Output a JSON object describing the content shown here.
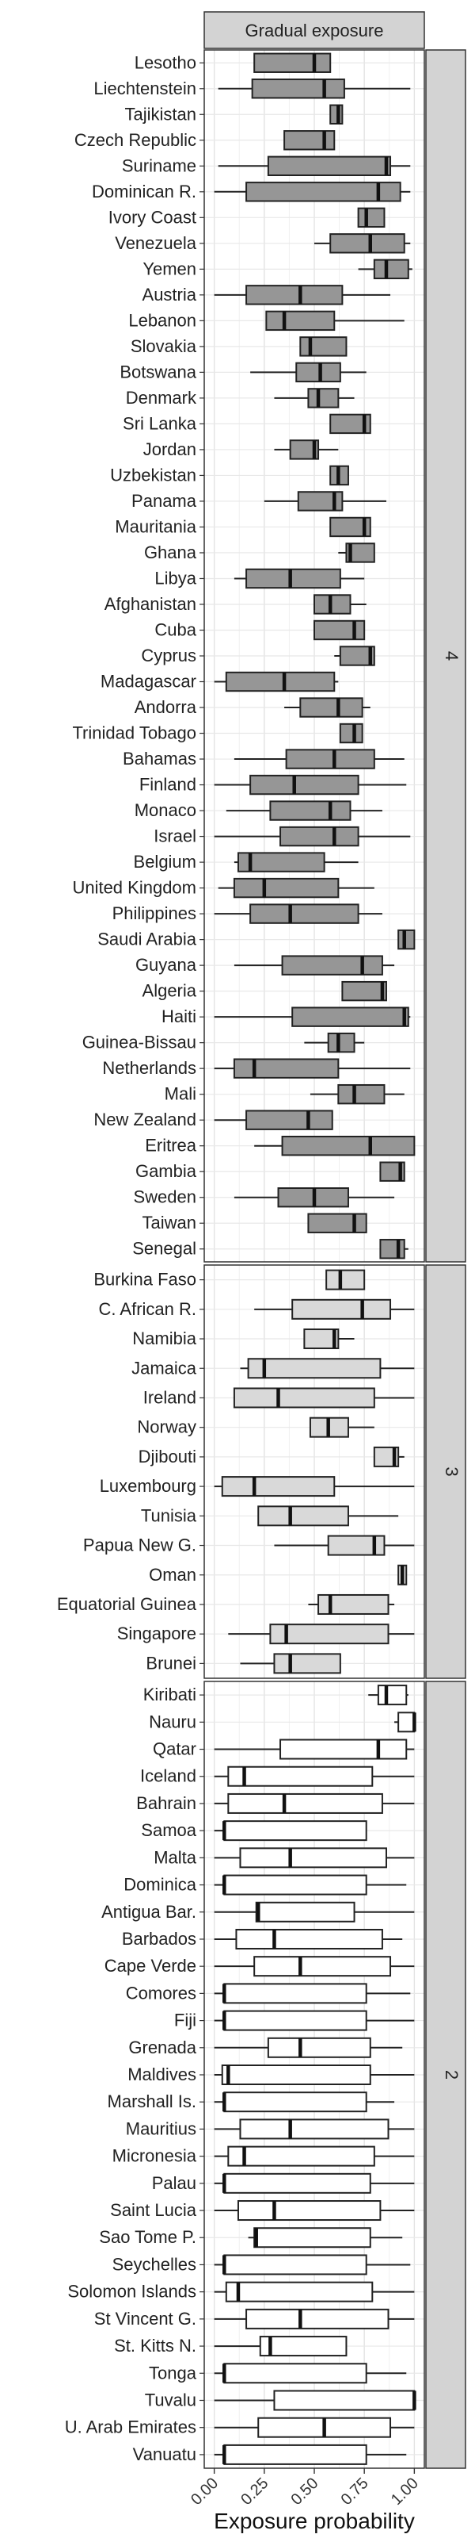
{
  "chart_data": {
    "type": "boxplot",
    "title": "",
    "column_strip": "Gradual exposure",
    "xlabel": "Exposure probability",
    "xlim": [
      -0.05,
      1.05
    ],
    "xticks": [
      0.0,
      0.25,
      0.5,
      0.75,
      1.0
    ],
    "xtick_labels": [
      "0.00",
      "0.25",
      "0.50",
      "0.75",
      "1.00"
    ],
    "grid": true,
    "panels": [
      {
        "label": "4",
        "fill": "#969696",
        "rows": [
          {
            "country": "Lesotho",
            "whisker_low": 0.2,
            "q1": 0.2,
            "median": 0.5,
            "q3": 0.58,
            "whisker_high": 0.58
          },
          {
            "country": "Liechtenstein",
            "whisker_low": 0.02,
            "q1": 0.19,
            "median": 0.55,
            "q3": 0.65,
            "whisker_high": 0.98
          },
          {
            "country": "Tajikistan",
            "whisker_low": 0.58,
            "q1": 0.58,
            "median": 0.62,
            "q3": 0.64,
            "whisker_high": 0.64
          },
          {
            "country": "Czech Republic",
            "whisker_low": 0.35,
            "q1": 0.35,
            "median": 0.55,
            "q3": 0.6,
            "whisker_high": 0.6
          },
          {
            "country": "Suriname",
            "whisker_low": 0.02,
            "q1": 0.27,
            "median": 0.86,
            "q3": 0.88,
            "whisker_high": 0.98
          },
          {
            "country": "Dominican R.",
            "whisker_low": 0.0,
            "q1": 0.16,
            "median": 0.82,
            "q3": 0.93,
            "whisker_high": 0.98
          },
          {
            "country": "Ivory Coast",
            "whisker_low": 0.72,
            "q1": 0.72,
            "median": 0.76,
            "q3": 0.85,
            "whisker_high": 0.85
          },
          {
            "country": "Venezuela",
            "whisker_low": 0.5,
            "q1": 0.58,
            "median": 0.78,
            "q3": 0.95,
            "whisker_high": 0.98
          },
          {
            "country": "Yemen",
            "whisker_low": 0.72,
            "q1": 0.8,
            "median": 0.86,
            "q3": 0.97,
            "whisker_high": 0.99
          },
          {
            "country": "Austria",
            "whisker_low": 0.0,
            "q1": 0.16,
            "median": 0.43,
            "q3": 0.64,
            "whisker_high": 0.88
          },
          {
            "country": "Lebanon",
            "whisker_low": 0.26,
            "q1": 0.26,
            "median": 0.35,
            "q3": 0.6,
            "whisker_high": 0.95
          },
          {
            "country": "Slovakia",
            "whisker_low": 0.43,
            "q1": 0.43,
            "median": 0.48,
            "q3": 0.66,
            "whisker_high": 0.66
          },
          {
            "country": "Botswana",
            "whisker_low": 0.18,
            "q1": 0.41,
            "median": 0.53,
            "q3": 0.63,
            "whisker_high": 0.76
          },
          {
            "country": "Denmark",
            "whisker_low": 0.3,
            "q1": 0.47,
            "median": 0.52,
            "q3": 0.62,
            "whisker_high": 0.7
          },
          {
            "country": "Sri Lanka",
            "whisker_low": 0.58,
            "q1": 0.58,
            "median": 0.75,
            "q3": 0.78,
            "whisker_high": 0.78
          },
          {
            "country": "Jordan",
            "whisker_low": 0.3,
            "q1": 0.38,
            "median": 0.5,
            "q3": 0.52,
            "whisker_high": 0.62
          },
          {
            "country": "Uzbekistan",
            "whisker_low": 0.58,
            "q1": 0.58,
            "median": 0.62,
            "q3": 0.67,
            "whisker_high": 0.67
          },
          {
            "country": "Panama",
            "whisker_low": 0.25,
            "q1": 0.42,
            "median": 0.6,
            "q3": 0.64,
            "whisker_high": 0.86
          },
          {
            "country": "Mauritania",
            "whisker_low": 0.58,
            "q1": 0.58,
            "median": 0.75,
            "q3": 0.78,
            "whisker_high": 0.78
          },
          {
            "country": "Ghana",
            "whisker_low": 0.62,
            "q1": 0.66,
            "median": 0.68,
            "q3": 0.8,
            "whisker_high": 0.8
          },
          {
            "country": "Libya",
            "whisker_low": 0.1,
            "q1": 0.16,
            "median": 0.38,
            "q3": 0.63,
            "whisker_high": 0.75
          },
          {
            "country": "Afghanistan",
            "whisker_low": 0.5,
            "q1": 0.5,
            "median": 0.58,
            "q3": 0.68,
            "whisker_high": 0.76
          },
          {
            "country": "Cuba",
            "whisker_low": 0.5,
            "q1": 0.5,
            "median": 0.7,
            "q3": 0.75,
            "whisker_high": 0.75
          },
          {
            "country": "Cyprus",
            "whisker_low": 0.6,
            "q1": 0.63,
            "median": 0.78,
            "q3": 0.8,
            "whisker_high": 0.8
          },
          {
            "country": "Madagascar",
            "whisker_low": 0.0,
            "q1": 0.06,
            "median": 0.35,
            "q3": 0.6,
            "whisker_high": 0.62
          },
          {
            "country": "Andorra",
            "whisker_low": 0.35,
            "q1": 0.43,
            "median": 0.62,
            "q3": 0.74,
            "whisker_high": 0.78
          },
          {
            "country": "Trinidad Tobago",
            "whisker_low": 0.63,
            "q1": 0.63,
            "median": 0.7,
            "q3": 0.74,
            "whisker_high": 0.74
          },
          {
            "country": "Bahamas",
            "whisker_low": 0.1,
            "q1": 0.36,
            "median": 0.6,
            "q3": 0.8,
            "whisker_high": 0.95
          },
          {
            "country": "Finland",
            "whisker_low": 0.0,
            "q1": 0.18,
            "median": 0.4,
            "q3": 0.72,
            "whisker_high": 0.96
          },
          {
            "country": "Monaco",
            "whisker_low": 0.06,
            "q1": 0.28,
            "median": 0.58,
            "q3": 0.68,
            "whisker_high": 0.84
          },
          {
            "country": "Israel",
            "whisker_low": 0.0,
            "q1": 0.33,
            "median": 0.6,
            "q3": 0.72,
            "whisker_high": 0.98
          },
          {
            "country": "Belgium",
            "whisker_low": 0.1,
            "q1": 0.12,
            "median": 0.18,
            "q3": 0.55,
            "whisker_high": 0.72
          },
          {
            "country": "United Kingdom",
            "whisker_low": 0.02,
            "q1": 0.1,
            "median": 0.25,
            "q3": 0.62,
            "whisker_high": 0.8
          },
          {
            "country": "Philippines",
            "whisker_low": 0.0,
            "q1": 0.18,
            "median": 0.38,
            "q3": 0.72,
            "whisker_high": 0.84
          },
          {
            "country": "Saudi Arabia",
            "whisker_low": 0.92,
            "q1": 0.92,
            "median": 0.95,
            "q3": 1.0,
            "whisker_high": 1.0
          },
          {
            "country": "Guyana",
            "whisker_low": 0.1,
            "q1": 0.34,
            "median": 0.74,
            "q3": 0.84,
            "whisker_high": 0.9
          },
          {
            "country": "Algeria",
            "whisker_low": 0.64,
            "q1": 0.64,
            "median": 0.84,
            "q3": 0.86,
            "whisker_high": 0.86
          },
          {
            "country": "Haiti",
            "whisker_low": 0.0,
            "q1": 0.39,
            "median": 0.95,
            "q3": 0.97,
            "whisker_high": 0.98
          },
          {
            "country": "Guinea-Bissau",
            "whisker_low": 0.45,
            "q1": 0.57,
            "median": 0.62,
            "q3": 0.7,
            "whisker_high": 0.75
          },
          {
            "country": "Netherlands",
            "whisker_low": 0.0,
            "q1": 0.1,
            "median": 0.2,
            "q3": 0.62,
            "whisker_high": 0.98
          },
          {
            "country": "Mali",
            "whisker_low": 0.48,
            "q1": 0.62,
            "median": 0.7,
            "q3": 0.85,
            "whisker_high": 0.95
          },
          {
            "country": "New Zealand",
            "whisker_low": 0.0,
            "q1": 0.16,
            "median": 0.47,
            "q3": 0.59,
            "whisker_high": 0.59
          },
          {
            "country": "Eritrea",
            "whisker_low": 0.2,
            "q1": 0.34,
            "median": 0.78,
            "q3": 1.0,
            "whisker_high": 1.0
          },
          {
            "country": "Gambia",
            "whisker_low": 0.83,
            "q1": 0.83,
            "median": 0.93,
            "q3": 0.95,
            "whisker_high": 0.95
          },
          {
            "country": "Sweden",
            "whisker_low": 0.1,
            "q1": 0.32,
            "median": 0.5,
            "q3": 0.67,
            "whisker_high": 0.9
          },
          {
            "country": "Taiwan",
            "whisker_low": 0.47,
            "q1": 0.47,
            "median": 0.7,
            "q3": 0.76,
            "whisker_high": 0.76
          },
          {
            "country": "Senegal",
            "whisker_low": 0.83,
            "q1": 0.83,
            "median": 0.92,
            "q3": 0.95,
            "whisker_high": 0.97
          }
        ]
      },
      {
        "label": "3",
        "fill": "#d9d9d9",
        "rows": [
          {
            "country": "Burkina Faso",
            "whisker_low": 0.56,
            "q1": 0.56,
            "median": 0.63,
            "q3": 0.75,
            "whisker_high": 0.75
          },
          {
            "country": "C. African R.",
            "whisker_low": 0.2,
            "q1": 0.39,
            "median": 0.74,
            "q3": 0.88,
            "whisker_high": 1.0
          },
          {
            "country": "Namibia",
            "whisker_low": 0.45,
            "q1": 0.45,
            "median": 0.6,
            "q3": 0.62,
            "whisker_high": 0.7
          },
          {
            "country": "Jamaica",
            "whisker_low": 0.13,
            "q1": 0.17,
            "median": 0.25,
            "q3": 0.83,
            "whisker_high": 1.0
          },
          {
            "country": "Ireland",
            "whisker_low": 0.1,
            "q1": 0.1,
            "median": 0.32,
            "q3": 0.8,
            "whisker_high": 1.0
          },
          {
            "country": "Norway",
            "whisker_low": 0.48,
            "q1": 0.48,
            "median": 0.57,
            "q3": 0.67,
            "whisker_high": 0.8
          },
          {
            "country": "Djibouti",
            "whisker_low": 0.8,
            "q1": 0.8,
            "median": 0.9,
            "q3": 0.92,
            "whisker_high": 0.95
          },
          {
            "country": "Luxembourg",
            "whisker_low": 0.0,
            "q1": 0.04,
            "median": 0.2,
            "q3": 0.6,
            "whisker_high": 1.0
          },
          {
            "country": "Tunisia",
            "whisker_low": 0.22,
            "q1": 0.22,
            "median": 0.38,
            "q3": 0.67,
            "whisker_high": 0.92
          },
          {
            "country": "Papua New G.",
            "whisker_low": 0.3,
            "q1": 0.57,
            "median": 0.8,
            "q3": 0.85,
            "whisker_high": 1.0
          },
          {
            "country": "Oman",
            "whisker_low": 0.92,
            "q1": 0.92,
            "median": 0.94,
            "q3": 0.96,
            "whisker_high": 0.96
          },
          {
            "country": "Equatorial Guinea",
            "whisker_low": 0.47,
            "q1": 0.52,
            "median": 0.58,
            "q3": 0.87,
            "whisker_high": 0.9
          },
          {
            "country": "Singapore",
            "whisker_low": 0.07,
            "q1": 0.28,
            "median": 0.36,
            "q3": 0.87,
            "whisker_high": 1.0
          },
          {
            "country": "Brunei",
            "whisker_low": 0.13,
            "q1": 0.3,
            "median": 0.38,
            "q3": 0.63,
            "whisker_high": 0.63
          }
        ]
      },
      {
        "label": "2",
        "fill": "#ffffff",
        "rows": [
          {
            "country": "Kiribati",
            "whisker_low": 0.77,
            "q1": 0.82,
            "median": 0.86,
            "q3": 0.96,
            "whisker_high": 0.97
          },
          {
            "country": "Nauru",
            "whisker_low": 0.9,
            "q1": 0.92,
            "median": 1.0,
            "q3": 1.0,
            "whisker_high": 1.0
          },
          {
            "country": "Qatar",
            "whisker_low": 0.0,
            "q1": 0.33,
            "median": 0.82,
            "q3": 0.96,
            "whisker_high": 1.0
          },
          {
            "country": "Iceland",
            "whisker_low": 0.0,
            "q1": 0.07,
            "median": 0.15,
            "q3": 0.79,
            "whisker_high": 1.0
          },
          {
            "country": "Bahrain",
            "whisker_low": 0.0,
            "q1": 0.07,
            "median": 0.35,
            "q3": 0.84,
            "whisker_high": 1.0
          },
          {
            "country": "Samoa",
            "whisker_low": 0.0,
            "q1": 0.05,
            "median": 0.05,
            "q3": 0.76,
            "whisker_high": 0.76
          },
          {
            "country": "Malta",
            "whisker_low": 0.0,
            "q1": 0.13,
            "median": 0.38,
            "q3": 0.86,
            "whisker_high": 1.0
          },
          {
            "country": "Dominica",
            "whisker_low": 0.0,
            "q1": 0.05,
            "median": 0.05,
            "q3": 0.76,
            "whisker_high": 0.96
          },
          {
            "country": "Antigua Bar.",
            "whisker_low": 0.0,
            "q1": 0.21,
            "median": 0.22,
            "q3": 0.7,
            "whisker_high": 1.0
          },
          {
            "country": "Barbados",
            "whisker_low": 0.0,
            "q1": 0.11,
            "median": 0.3,
            "q3": 0.84,
            "whisker_high": 0.94
          },
          {
            "country": "Cape Verde",
            "whisker_low": 0.0,
            "q1": 0.2,
            "median": 0.43,
            "q3": 0.88,
            "whisker_high": 1.0
          },
          {
            "country": "Comores",
            "whisker_low": 0.0,
            "q1": 0.05,
            "median": 0.05,
            "q3": 0.76,
            "whisker_high": 0.98
          },
          {
            "country": "Fiji",
            "whisker_low": 0.0,
            "q1": 0.05,
            "median": 0.05,
            "q3": 0.76,
            "whisker_high": 1.0
          },
          {
            "country": "Grenada",
            "whisker_low": 0.0,
            "q1": 0.27,
            "median": 0.43,
            "q3": 0.78,
            "whisker_high": 0.94
          },
          {
            "country": "Maldives",
            "whisker_low": 0.0,
            "q1": 0.04,
            "median": 0.07,
            "q3": 0.78,
            "whisker_high": 1.0
          },
          {
            "country": "Marshall Is.",
            "whisker_low": 0.0,
            "q1": 0.05,
            "median": 0.05,
            "q3": 0.76,
            "whisker_high": 0.9
          },
          {
            "country": "Mauritius",
            "whisker_low": 0.0,
            "q1": 0.13,
            "median": 0.38,
            "q3": 0.87,
            "whisker_high": 1.0
          },
          {
            "country": "Micronesia",
            "whisker_low": 0.0,
            "q1": 0.07,
            "median": 0.15,
            "q3": 0.8,
            "whisker_high": 1.0
          },
          {
            "country": "Palau",
            "whisker_low": 0.0,
            "q1": 0.05,
            "median": 0.05,
            "q3": 0.78,
            "whisker_high": 1.0
          },
          {
            "country": "Saint Lucia",
            "whisker_low": 0.0,
            "q1": 0.12,
            "median": 0.3,
            "q3": 0.83,
            "whisker_high": 1.0
          },
          {
            "country": "Sao Tome P.",
            "whisker_low": 0.17,
            "q1": 0.2,
            "median": 0.21,
            "q3": 0.78,
            "whisker_high": 0.94
          },
          {
            "country": "Seychelles",
            "whisker_low": 0.0,
            "q1": 0.05,
            "median": 0.05,
            "q3": 0.76,
            "whisker_high": 0.98
          },
          {
            "country": "Solomon Islands",
            "whisker_low": 0.0,
            "q1": 0.06,
            "median": 0.12,
            "q3": 0.79,
            "whisker_high": 1.0
          },
          {
            "country": "St Vincent G.",
            "whisker_low": 0.0,
            "q1": 0.16,
            "median": 0.43,
            "q3": 0.87,
            "whisker_high": 1.0
          },
          {
            "country": "St. Kitts N.",
            "whisker_low": 0.0,
            "q1": 0.23,
            "median": 0.28,
            "q3": 0.66,
            "whisker_high": 0.66
          },
          {
            "country": "Tonga",
            "whisker_low": 0.0,
            "q1": 0.05,
            "median": 0.05,
            "q3": 0.76,
            "whisker_high": 0.96
          },
          {
            "country": "Tuvalu",
            "whisker_low": 0.0,
            "q1": 0.3,
            "median": 1.0,
            "q3": 1.0,
            "whisker_high": 1.0
          },
          {
            "country": "U. Arab Emirates",
            "whisker_low": 0.0,
            "q1": 0.22,
            "median": 0.55,
            "q3": 0.88,
            "whisker_high": 1.0
          },
          {
            "country": "Vanuatu",
            "whisker_low": 0.0,
            "q1": 0.05,
            "median": 0.05,
            "q3": 0.76,
            "whisker_high": 0.96
          }
        ]
      }
    ]
  }
}
